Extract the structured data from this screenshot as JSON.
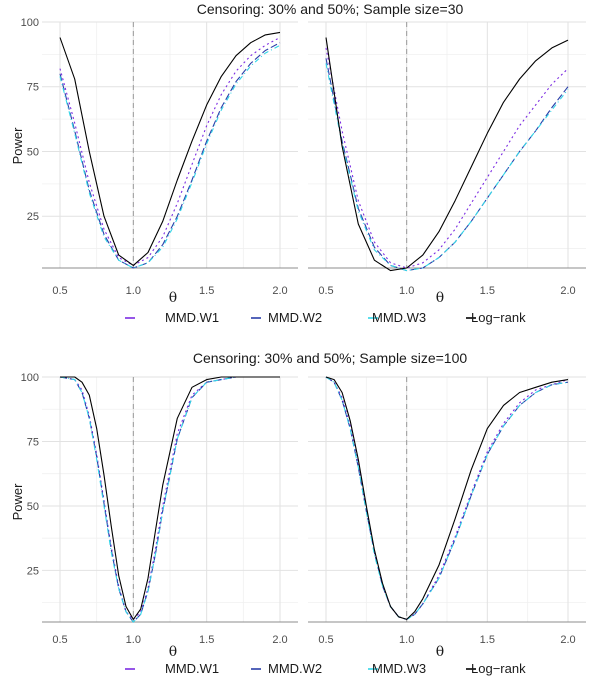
{
  "chart_data": [
    {
      "type": "line",
      "title": "Censoring: 30% and 50%; Sample size=30",
      "xlabel": "θ",
      "ylabel": "Power",
      "x_ticks": [
        "0.5",
        "1.0",
        "1.5",
        "2.0"
      ],
      "y_ticks": [
        "25",
        "50",
        "75",
        "100"
      ],
      "xlim": [
        0.5,
        2.0
      ],
      "ylim": [
        5,
        100
      ],
      "reference_line_x": 1.0,
      "legend_position": "bottom",
      "legend": [
        {
          "name": "MMD.W1",
          "color": "#7b2be2",
          "dash": "2,3"
        },
        {
          "name": "MMD.W2",
          "color": "#2a3ea8",
          "dash": "7,3"
        },
        {
          "name": "MMD.W3",
          "color": "#33d6e8",
          "dash": "5,3,1,3"
        },
        {
          "name": "Log−rank",
          "color": "#000000",
          "dash": ""
        }
      ],
      "panels": [
        {
          "x": [
            0.5,
            0.6,
            0.7,
            0.8,
            0.9,
            1.0,
            1.1,
            1.2,
            1.3,
            1.4,
            1.5,
            1.6,
            1.7,
            1.8,
            1.9,
            2.0
          ],
          "series": [
            {
              "name": "MMD.W1",
              "values": [
                82,
                61,
                38,
                20,
                9,
                6,
                9,
                17,
                30,
                45,
                60,
                72,
                81,
                87,
                91,
                94
              ]
            },
            {
              "name": "MMD.W2",
              "values": [
                80,
                58,
                35,
                18,
                8,
                5,
                7,
                14,
                25,
                39,
                54,
                67,
                77,
                84,
                89,
                92
              ]
            },
            {
              "name": "MMD.W3",
              "values": [
                79,
                57,
                34,
                17,
                8,
                5,
                7,
                13,
                24,
                38,
                53,
                66,
                76,
                83,
                88,
                91
              ]
            },
            {
              "name": "Log−rank",
              "values": [
                94,
                78,
                50,
                25,
                10,
                6,
                11,
                23,
                39,
                54,
                68,
                79,
                87,
                92,
                95,
                96
              ]
            }
          ]
        },
        {
          "x": [
            0.5,
            0.6,
            0.7,
            0.8,
            0.9,
            1.0,
            1.1,
            1.2,
            1.3,
            1.4,
            1.5,
            1.6,
            1.7,
            1.8,
            1.9,
            2.0
          ],
          "series": [
            {
              "name": "MMD.W1",
              "values": [
                90,
                58,
                31,
                15,
                7,
                5,
                7,
                12,
                20,
                30,
                40,
                50,
                60,
                68,
                76,
                82
              ]
            },
            {
              "name": "MMD.W2",
              "values": [
                86,
                54,
                28,
                13,
                6,
                4,
                5,
                9,
                15,
                23,
                32,
                41,
                50,
                58,
                67,
                75
              ]
            },
            {
              "name": "MMD.W3",
              "values": [
                84,
                53,
                27,
                12,
                6,
                4,
                5,
                9,
                15,
                23,
                32,
                41,
                50,
                58,
                66,
                74
              ]
            },
            {
              "name": "Log−rank",
              "values": [
                94,
                52,
                22,
                8,
                4,
                5,
                10,
                19,
                31,
                44,
                57,
                69,
                78,
                85,
                90,
                93
              ]
            }
          ]
        }
      ]
    },
    {
      "type": "line",
      "title": "Censoring: 30% and 50%; Sample size=100",
      "xlabel": "θ",
      "ylabel": "Power",
      "x_ticks": [
        "0.5",
        "1.0",
        "1.5",
        "2.0"
      ],
      "y_ticks": [
        "25",
        "50",
        "75",
        "100"
      ],
      "xlim": [
        0.5,
        2.0
      ],
      "ylim": [
        5,
        100
      ],
      "reference_line_x": 1.0,
      "legend_position": "bottom",
      "legend": [
        {
          "name": "MMD.W1",
          "color": "#7b2be2",
          "dash": "2,3"
        },
        {
          "name": "MMD.W2",
          "color": "#2a3ea8",
          "dash": "7,3"
        },
        {
          "name": "MMD.W3",
          "color": "#33d6e8",
          "dash": "5,3,1,3"
        },
        {
          "name": "Log−rank",
          "color": "#000000",
          "dash": ""
        }
      ],
      "panels": [
        {
          "x": [
            0.5,
            0.6,
            0.65,
            0.7,
            0.75,
            0.8,
            0.85,
            0.9,
            0.95,
            1.0,
            1.05,
            1.1,
            1.15,
            1.2,
            1.3,
            1.4,
            1.5,
            1.6,
            1.7,
            1.8,
            1.9,
            2.0
          ],
          "series": [
            {
              "name": "MMD.W1",
              "values": [
                100,
                99,
                95,
                85,
                70,
                52,
                34,
                19,
                9,
                6,
                9,
                18,
                33,
                50,
                78,
                93,
                98,
                99,
                100,
                100,
                100,
                100
              ]
            },
            {
              "name": "MMD.W2",
              "values": [
                100,
                99,
                94,
                84,
                69,
                51,
                33,
                18,
                9,
                5,
                8,
                17,
                31,
                48,
                76,
                92,
                98,
                99,
                100,
                100,
                100,
                100
              ]
            },
            {
              "name": "MMD.W3",
              "values": [
                100,
                99,
                94,
                84,
                68,
                50,
                32,
                18,
                9,
                5,
                8,
                17,
                31,
                48,
                76,
                92,
                98,
                99,
                100,
                100,
                100,
                100
              ]
            },
            {
              "name": "Log−rank",
              "values": [
                100,
                100,
                98,
                93,
                80,
                62,
                42,
                23,
                11,
                6,
                10,
                22,
                40,
                58,
                84,
                96,
                99,
                100,
                100,
                100,
                100,
                100
              ]
            }
          ]
        },
        {
          "x": [
            0.5,
            0.55,
            0.6,
            0.65,
            0.7,
            0.75,
            0.8,
            0.85,
            0.9,
            0.95,
            1.0,
            1.05,
            1.1,
            1.2,
            1.3,
            1.4,
            1.5,
            1.6,
            1.7,
            1.8,
            1.9,
            2.0
          ],
          "series": [
            {
              "name": "MMD.W1",
              "values": [
                100,
                98,
                92,
                81,
                66,
                49,
                32,
                19,
                11,
                7,
                6,
                8,
                12,
                23,
                38,
                55,
                71,
                82,
                90,
                95,
                97,
                99
              ]
            },
            {
              "name": "MMD.W2",
              "values": [
                100,
                98,
                91,
                80,
                65,
                48,
                32,
                19,
                11,
                7,
                6,
                8,
                12,
                22,
                37,
                54,
                70,
                81,
                89,
                94,
                97,
                98
              ]
            },
            {
              "name": "MMD.W3",
              "values": [
                100,
                98,
                91,
                80,
                65,
                48,
                31,
                19,
                11,
                7,
                6,
                8,
                12,
                22,
                37,
                54,
                70,
                81,
                89,
                94,
                97,
                98
              ]
            },
            {
              "name": "Log−rank",
              "values": [
                100,
                99,
                94,
                83,
                68,
                50,
                33,
                20,
                11,
                7,
                6,
                9,
                14,
                27,
                45,
                64,
                80,
                89,
                94,
                96,
                98,
                99
              ]
            }
          ]
        }
      ]
    }
  ]
}
